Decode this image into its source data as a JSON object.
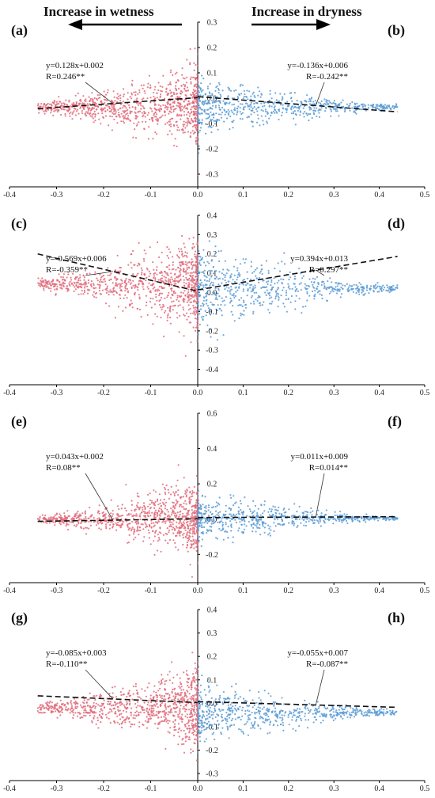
{
  "header": {
    "left": "Increase in wetness",
    "right": "Increase in dryness"
  },
  "colors": {
    "wet": "#e06b7a",
    "dry": "#5a9bd5",
    "fit": "#111111"
  },
  "chart_data": [
    {
      "panel": "(a)",
      "side": "wet",
      "type": "scatter",
      "fit": {
        "slope": 0.128,
        "intercept": 0.002
      },
      "equation": "y=0.128x+0.002",
      "r_text": "R=0.246**",
      "xlim": [
        -0.4,
        0.0
      ],
      "xticks": [
        "-0.4",
        "-0.3",
        "-0.2",
        "-0.1",
        "0.0"
      ],
      "ylim": [
        -0.35,
        0.3
      ],
      "yticks": [
        "0.3",
        "0.2",
        "0.1",
        "0.0",
        "-0.1",
        "-0.2",
        "-0.3"
      ],
      "cloud": {
        "center": -0.035,
        "spread_near": 0.14,
        "spread_far": 0.02
      }
    },
    {
      "panel": "(b)",
      "side": "dry",
      "type": "scatter",
      "fit": {
        "slope": -0.136,
        "intercept": 0.006
      },
      "equation": "y=-0.136x+0.006",
      "r_text": "R=-0.242**",
      "xlim": [
        0.0,
        0.5
      ],
      "xticks": [
        "0.1",
        "0.2",
        "0.3",
        "0.4",
        "0.5"
      ],
      "ylim": [
        -0.35,
        0.3
      ],
      "cloud": {
        "center": -0.035,
        "spread_near": 0.1,
        "spread_far": 0.01
      }
    },
    {
      "panel": "(c)",
      "side": "wet",
      "type": "scatter",
      "fit": {
        "slope": -0.569,
        "intercept": 0.006
      },
      "equation": "y=-0.569x+0.006",
      "r_text": "R=-0.359**",
      "xlim": [
        -0.4,
        0.0
      ],
      "xticks": [
        "-0.4",
        "-0.3",
        "-0.2",
        "-0.1",
        "0.0"
      ],
      "ylim": [
        -0.48,
        0.4
      ],
      "yticks": [
        "0.4",
        "0.3",
        "0.2",
        "0.1",
        "0.0",
        "-0.1",
        "-0.2",
        "-0.3",
        "-0.4"
      ],
      "cloud": {
        "center": 0.04,
        "spread_near": 0.22,
        "spread_far": 0.03
      }
    },
    {
      "panel": "(d)",
      "side": "dry",
      "type": "scatter",
      "fit": {
        "slope": 0.394,
        "intercept": 0.013
      },
      "equation": "y=0.394x+0.013",
      "r_text": "R=0.297**",
      "xlim": [
        0.0,
        0.5
      ],
      "xticks": [
        "0.1",
        "0.2",
        "0.3",
        "0.4",
        "0.5"
      ],
      "ylim": [
        -0.48,
        0.4
      ],
      "cloud": {
        "center": 0.02,
        "spread_near": 0.2,
        "spread_far": 0.015
      }
    },
    {
      "panel": "(e)",
      "side": "wet",
      "type": "scatter",
      "fit": {
        "slope": 0.043,
        "intercept": 0.002
      },
      "equation": "y=0.043x+0.002",
      "r_text": "R=0.08**",
      "xlim": [
        -0.4,
        0.0
      ],
      "xticks": [
        "-0.4",
        "-0.3",
        "-0.2",
        "-0.1",
        "0.0"
      ],
      "ylim": [
        -0.36,
        0.6
      ],
      "yticks": [
        "0.6",
        "0.4",
        "0.2",
        "0.0",
        "-0.2"
      ],
      "cloud": {
        "center": 0.0,
        "spread_near": 0.2,
        "spread_far": 0.02
      }
    },
    {
      "panel": "(f)",
      "side": "dry",
      "type": "scatter",
      "fit": {
        "slope": 0.011,
        "intercept": 0.009
      },
      "equation": "y=0.011x+0.009",
      "r_text": "R=0.014**",
      "xlim": [
        0.0,
        0.5
      ],
      "xticks": [
        "0.1",
        "0.2",
        "0.3",
        "0.4",
        "0.5"
      ],
      "ylim": [
        -0.36,
        0.6
      ],
      "cloud": {
        "center": 0.005,
        "spread_near": 0.12,
        "spread_far": 0.008
      }
    },
    {
      "panel": "(g)",
      "side": "wet",
      "type": "scatter",
      "fit": {
        "slope": -0.085,
        "intercept": 0.003
      },
      "equation": "y=-0.085x+0.003",
      "r_text": "R=-0.110**",
      "xlim": [
        -0.4,
        0.0
      ],
      "xticks": [
        "-0.4",
        "-0.3",
        "-0.2",
        "-0.1",
        "0.0"
      ],
      "ylim": [
        -0.33,
        0.4
      ],
      "yticks": [
        "0.4",
        "0.3",
        "0.2",
        "0.1",
        "0.0",
        "-0.1",
        "-0.2",
        "-0.3"
      ],
      "cloud": {
        "center": -0.02,
        "spread_near": 0.16,
        "spread_far": 0.02
      }
    },
    {
      "panel": "(h)",
      "side": "dry",
      "type": "scatter",
      "fit": {
        "slope": -0.055,
        "intercept": 0.007
      },
      "equation": "y=-0.055x+0.007",
      "r_text": "R=-0.087**",
      "xlim": [
        0.0,
        0.5
      ],
      "xticks": [
        "0.1",
        "0.2",
        "0.3",
        "0.4",
        "0.5"
      ],
      "ylim": [
        -0.33,
        0.4
      ],
      "cloud": {
        "center": -0.04,
        "spread_near": 0.12,
        "spread_far": 0.01
      }
    }
  ]
}
